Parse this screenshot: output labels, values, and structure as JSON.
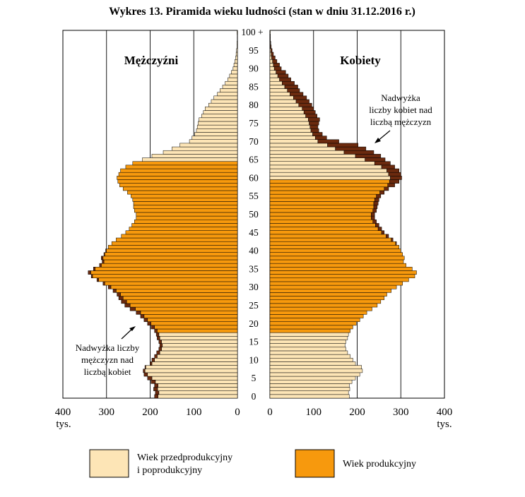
{
  "chart_data": {
    "type": "bar",
    "title": "Wykres 13. Piramida wieku ludności (stan w dniu 31.12.2016 r.)",
    "left_panel_label": "Mężczyźni",
    "right_panel_label": "Kobiety",
    "x_unit_label": "tys.",
    "x_ticks_left": [
      "400",
      "300",
      "200",
      "100",
      "0"
    ],
    "x_ticks_right": [
      "0",
      "100",
      "200",
      "300",
      "400"
    ],
    "x_tick_values": [
      400,
      300,
      200,
      100,
      0
    ],
    "x_tick_values_right": [
      0,
      100,
      200,
      300,
      400
    ],
    "xlim": [
      0,
      400
    ],
    "age_ticks": [
      "0",
      "5",
      "10",
      "15",
      "20",
      "25",
      "30",
      "35",
      "40",
      "45",
      "50",
      "55",
      "60",
      "65",
      "70",
      "75",
      "80",
      "85",
      "90",
      "95",
      "100 +"
    ],
    "age_tick_values": [
      0,
      5,
      10,
      15,
      20,
      25,
      30,
      35,
      40,
      45,
      50,
      55,
      60,
      65,
      70,
      75,
      80,
      85,
      90,
      95,
      100
    ],
    "grid": true,
    "legend": [
      {
        "label_line1": "Wiek przedprodukcyjny",
        "label_line2": "i poprodukcyjny",
        "color": "#fde5b6"
      },
      {
        "label_line1": "Wiek produkcyjny",
        "label_line2": "",
        "color": "#f7990d"
      }
    ],
    "excess_color": "#6b2a0e",
    "annotations": [
      {
        "text_lines": [
          "Nadwyżka",
          "liczby kobiet nad",
          "liczbą mężczyzn"
        ],
        "side": "right"
      },
      {
        "text_lines": [
          "Nadwyżka liczby",
          "mężczyzn nad",
          "liczbą kobiet"
        ],
        "side": "left"
      }
    ],
    "ages": [
      0,
      1,
      2,
      3,
      4,
      5,
      6,
      7,
      8,
      9,
      10,
      11,
      12,
      13,
      14,
      15,
      16,
      17,
      18,
      19,
      20,
      21,
      22,
      23,
      24,
      25,
      26,
      27,
      28,
      29,
      30,
      31,
      32,
      33,
      34,
      35,
      36,
      37,
      38,
      39,
      40,
      41,
      42,
      43,
      44,
      45,
      46,
      47,
      48,
      49,
      50,
      51,
      52,
      53,
      54,
      55,
      56,
      57,
      58,
      59,
      60,
      61,
      62,
      63,
      64,
      65,
      66,
      67,
      68,
      69,
      70,
      71,
      72,
      73,
      74,
      75,
      76,
      77,
      78,
      79,
      80,
      81,
      82,
      83,
      84,
      85,
      86,
      87,
      88,
      89,
      90,
      91,
      92,
      93,
      94,
      95,
      96,
      97,
      98,
      99,
      100
    ],
    "working_age_men": [
      18,
      64
    ],
    "working_age_women": [
      18,
      59
    ],
    "series": [
      {
        "name": "Mężczyźni",
        "values": [
          190,
          188,
          192,
          190,
          198,
          206,
          214,
          216,
          212,
          200,
          196,
          190,
          185,
          180,
          178,
          180,
          184,
          186,
          190,
          198,
          206,
          214,
          222,
          232,
          246,
          258,
          266,
          272,
          276,
          285,
          296,
          308,
          322,
          335,
          342,
          330,
          316,
          310,
          312,
          306,
          302,
          296,
          288,
          278,
          266,
          256,
          248,
          242,
          236,
          232,
          232,
          236,
          238,
          238,
          240,
          244,
          252,
          262,
          270,
          274,
          276,
          272,
          268,
          256,
          240,
          218,
          196,
          170,
          150,
          132,
          110,
          104,
          98,
          94,
          92,
          90,
          88,
          82,
          78,
          74,
          66,
          60,
          54,
          46,
          40,
          34,
          28,
          22,
          18,
          14,
          10,
          8,
          6,
          4,
          3,
          2,
          1,
          1,
          0.5,
          0.5,
          1
        ]
      },
      {
        "name": "Kobiety",
        "values": [
          182,
          180,
          183,
          182,
          188,
          196,
          206,
          212,
          210,
          196,
          190,
          184,
          178,
          174,
          172,
          174,
          178,
          180,
          184,
          190,
          198,
          206,
          214,
          222,
          234,
          246,
          254,
          262,
          268,
          278,
          290,
          304,
          318,
          332,
          336,
          326,
          312,
          306,
          308,
          304,
          300,
          296,
          290,
          282,
          272,
          262,
          256,
          250,
          244,
          240,
          240,
          244,
          246,
          248,
          250,
          254,
          262,
          272,
          286,
          296,
          302,
          300,
          296,
          286,
          276,
          264,
          254,
          238,
          220,
          202,
          158,
          130,
          120,
          112,
          110,
          112,
          114,
          108,
          104,
          100,
          96,
          90,
          84,
          76,
          68,
          64,
          56,
          48,
          42,
          36,
          26,
          22,
          16,
          12,
          8,
          5,
          3,
          2,
          1,
          1,
          1
        ]
      }
    ]
  }
}
